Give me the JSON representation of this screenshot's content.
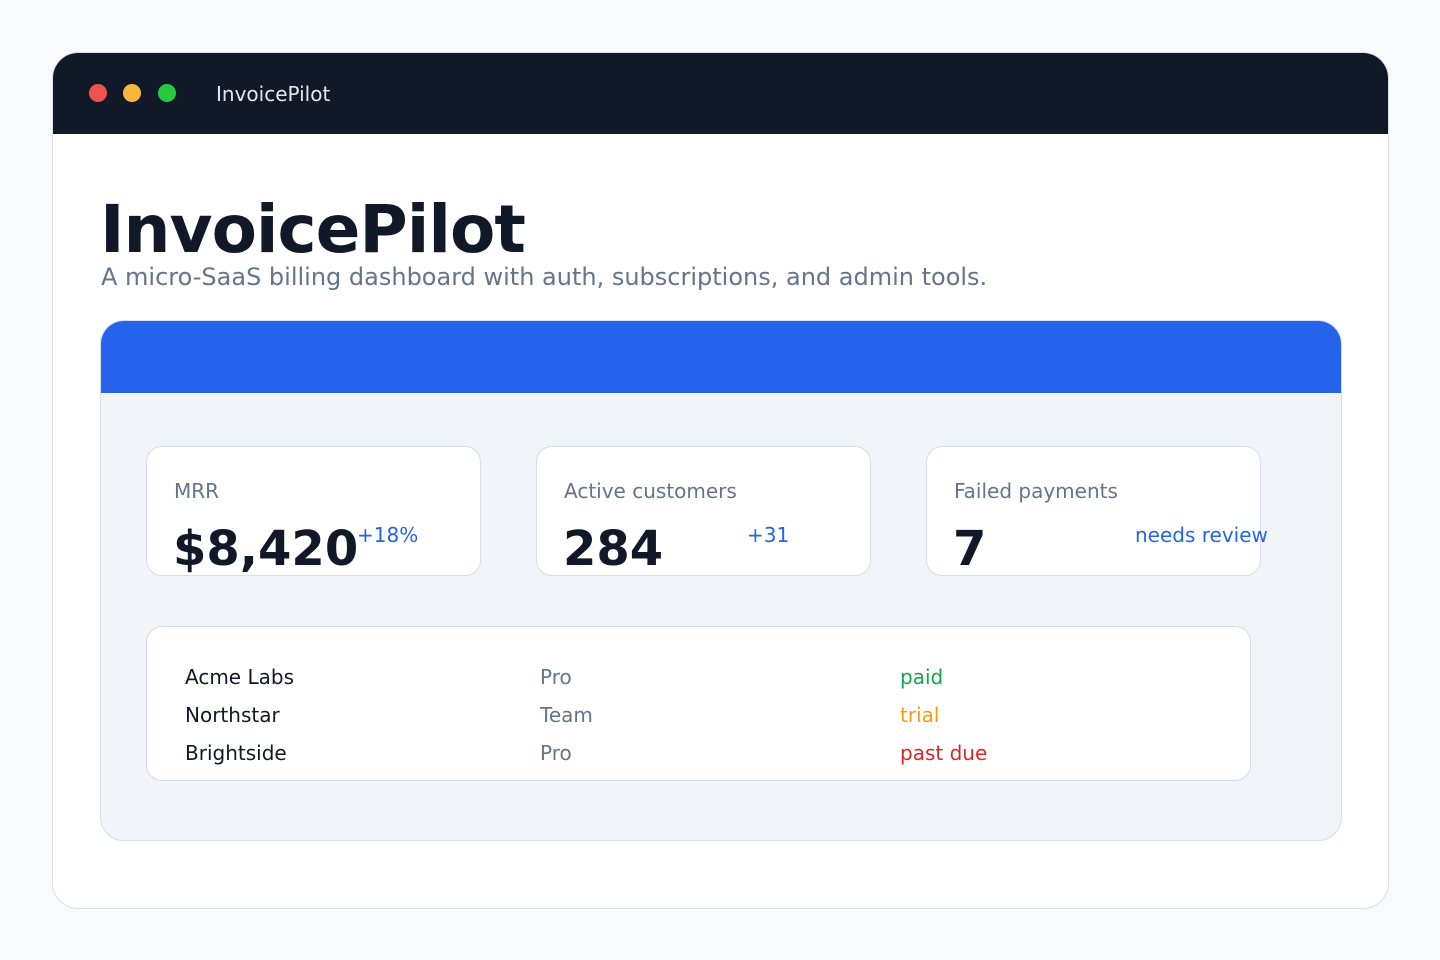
{
  "window": {
    "title": "InvoicePilot"
  },
  "hero": {
    "title": "InvoicePilot",
    "subtitle": "A micro-SaaS billing dashboard with auth, subscriptions, and admin tools."
  },
  "colors": {
    "accent": "#2563eb",
    "titlebar": "#111827",
    "paid": "#16a34a",
    "trial": "#f59e0b",
    "past_due": "#dc2626"
  },
  "metrics": [
    {
      "label": "MRR",
      "value": "$8,420",
      "delta": "+18%"
    },
    {
      "label": "Active customers",
      "value": "284",
      "delta": "+31"
    },
    {
      "label": "Failed payments",
      "value": "7",
      "delta": "needs review"
    }
  ],
  "customers": [
    {
      "name": "Acme Labs",
      "plan": "Pro",
      "status": "paid",
      "status_color": "#16a34a"
    },
    {
      "name": "Northstar",
      "plan": "Team",
      "status": "trial",
      "status_color": "#f59e0b"
    },
    {
      "name": "Brightside",
      "plan": "Pro",
      "status": "past due",
      "status_color": "#dc2626"
    }
  ]
}
